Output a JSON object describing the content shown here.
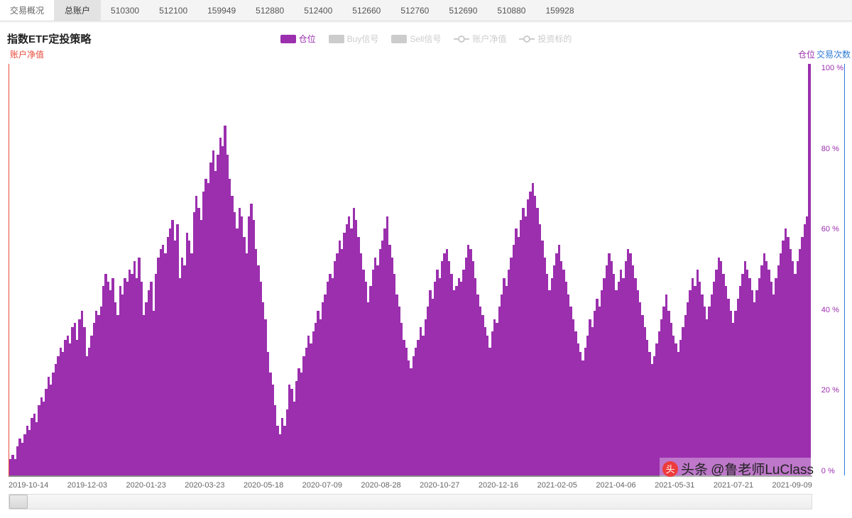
{
  "tabs": {
    "items": [
      "交易概况",
      "总账户",
      "510300",
      "512100",
      "159949",
      "512880",
      "512400",
      "512660",
      "512760",
      "512690",
      "510880",
      "159928"
    ],
    "active_index": 1
  },
  "chart": {
    "title": "指数ETF定投策略",
    "y_left_label": "账户净值",
    "y_right_label1": "仓位",
    "y_right_label2": "交易次数",
    "type": "bar",
    "bar_color": "#9b2fae",
    "background_color": "#ffffff",
    "axis_left_color": "#e74c3c",
    "axis_right_color": "#2d7bd4",
    "ylim": [
      0,
      100
    ],
    "ytick_step": 20,
    "yticks": [
      "100 %",
      "80 %",
      "60 %",
      "40 %",
      "20 %",
      "0 %"
    ],
    "xticks": [
      "2019-10-14",
      "2019-12-03",
      "2020-01-23",
      "2020-03-23",
      "2020-05-18",
      "2020-07-09",
      "2020-08-28",
      "2020-10-27",
      "2020-12-16",
      "2021-02-05",
      "2021-04-06",
      "2021-05-31",
      "2021-07-21",
      "2021-09-09"
    ],
    "values": [
      4,
      5,
      4,
      7,
      9,
      8,
      10,
      12,
      11,
      14,
      15,
      13,
      17,
      19,
      18,
      21,
      24,
      22,
      25,
      27,
      29,
      31,
      30,
      33,
      34,
      32,
      36,
      37,
      33,
      38,
      40,
      36,
      29,
      31,
      34,
      37,
      40,
      39,
      41,
      46,
      49,
      47,
      45,
      48,
      42,
      39,
      46,
      44,
      48,
      47,
      50,
      49,
      52,
      48,
      53,
      47,
      39,
      42,
      45,
      47,
      40,
      49,
      53,
      55,
      56,
      54,
      58,
      60,
      62,
      57,
      61,
      48,
      53,
      51,
      59,
      57,
      54,
      64,
      68,
      65,
      62,
      69,
      72,
      71,
      76,
      79,
      74,
      78,
      82,
      80,
      85,
      78,
      72,
      68,
      64,
      60,
      65,
      63,
      58,
      54,
      63,
      66,
      62,
      55,
      51,
      47,
      42,
      38,
      30,
      25,
      22,
      17,
      12,
      10,
      14,
      12,
      16,
      22,
      21,
      18,
      23,
      26,
      25,
      29,
      31,
      34,
      32,
      35,
      37,
      40,
      38,
      42,
      44,
      47,
      49,
      48,
      52,
      54,
      57,
      55,
      59,
      61,
      63,
      60,
      65,
      62,
      58,
      54,
      50,
      47,
      42,
      46,
      50,
      53,
      51,
      55,
      57,
      60,
      63,
      56,
      53,
      49,
      44,
      41,
      37,
      33,
      31,
      28,
      26,
      29,
      31,
      33,
      36,
      34,
      38,
      41,
      45,
      43,
      47,
      50,
      48,
      52,
      54,
      55,
      52,
      49,
      45,
      46,
      48,
      47,
      50,
      53,
      56,
      55,
      52,
      48,
      44,
      41,
      39,
      36,
      34,
      31,
      35,
      38,
      37,
      41,
      44,
      48,
      46,
      50,
      53,
      56,
      60,
      58,
      62,
      65,
      63,
      67,
      69,
      71,
      68,
      65,
      61,
      57,
      53,
      49,
      45,
      48,
      51,
      54,
      56,
      52,
      50,
      47,
      44,
      41,
      38,
      35,
      32,
      30,
      28,
      31,
      34,
      38,
      36,
      40,
      43,
      41,
      45,
      48,
      51,
      54,
      52,
      49,
      45,
      47,
      50,
      48,
      52,
      55,
      54,
      51,
      48,
      45,
      42,
      39,
      36,
      33,
      30,
      27,
      29,
      32,
      35,
      38,
      41,
      44,
      40,
      37,
      34,
      32,
      30,
      33,
      36,
      39,
      42,
      45,
      48,
      46,
      50,
      47,
      44,
      41,
      38,
      41,
      44,
      47,
      50,
      53,
      52,
      49,
      46,
      43,
      40,
      37,
      40,
      43,
      46,
      49,
      52,
      50,
      48,
      45,
      42,
      45,
      48,
      51,
      54,
      52,
      50,
      47,
      44,
      48,
      51,
      54,
      57,
      60,
      58,
      55,
      52,
      49,
      52,
      55,
      58,
      61,
      63,
      100
    ],
    "bar_gap": 0
  },
  "legend": {
    "items": [
      {
        "label": "仓位",
        "type": "box",
        "color": "#9b2fae",
        "active": true
      },
      {
        "label": "Buy信号",
        "type": "box",
        "color": "#cccccc",
        "active": false
      },
      {
        "label": "Sell信号",
        "type": "box",
        "color": "#cccccc",
        "active": false
      },
      {
        "label": "账户净值",
        "type": "line",
        "color": "#cccccc",
        "active": false
      },
      {
        "label": "投资标的",
        "type": "line",
        "color": "#cccccc",
        "active": false
      }
    ]
  },
  "watermark": {
    "prefix": "头条",
    "text": "@鲁老师LuClass",
    "logo": "头"
  }
}
